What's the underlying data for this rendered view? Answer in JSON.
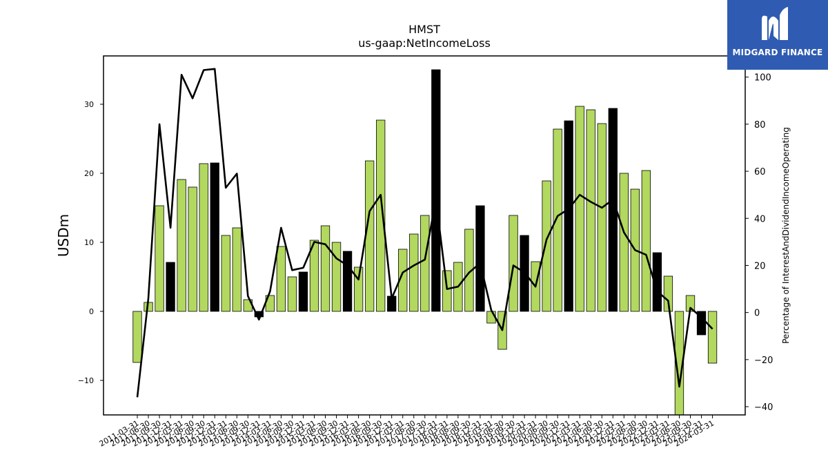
{
  "chart_data": {
    "type": "bar",
    "title": "HMST",
    "subtitle": "us-gaap:NetIncomeLoss",
    "ylabel": "USDm",
    "y2label": "Percentage of InterestAndDividendIncomeOperating",
    "ylim": [
      -15,
      37
    ],
    "y2lim": [
      -43.5,
      109
    ],
    "yticks": [
      -10,
      0,
      10,
      20,
      30
    ],
    "y2ticks": [
      -40,
      -20,
      0,
      20,
      40,
      60,
      80,
      100
    ],
    "tick_labels": [
      "2011-03-31",
      "2011-06-30",
      "2011-09-30",
      "2011-12-31",
      "2012-03-31",
      "2012-06-30",
      "2012-09-30",
      "2012-12-31",
      "2013-03-31",
      "2013-06-30",
      "2013-09-30",
      "2013-12-31",
      "2014-03-31",
      "2014-06-30",
      "2014-09-30",
      "2014-12-31",
      "2015-03-31",
      "2015-06-30",
      "2015-09-30",
      "2015-12-31",
      "2016-03-31",
      "2016-06-30",
      "2016-09-30",
      "2016-12-31",
      "2017-03-31",
      "2017-06-30",
      "2017-09-30",
      "2017-12-31",
      "2018-03-31",
      "2018-06-30",
      "2018-09-30",
      "2018-12-31",
      "2019-03-31",
      "2019-06-30",
      "2019-09-30",
      "2019-12-31",
      "2020-03-31",
      "2020-06-30",
      "2020-09-30",
      "2020-12-31",
      "2021-03-31",
      "2021-06-30",
      "2021-09-30",
      "2021-12-31",
      "2022-03-31",
      "2022-06-30",
      "2022-09-30",
      "2022-12-31",
      "2023-03-31",
      "2023-06-30",
      "2023-09-30",
      "2023-12-31",
      "2024-03-31"
    ],
    "values": [
      -7.4,
      1.3,
      15.3,
      7.1,
      19.1,
      18.0,
      21.4,
      21.5,
      11.0,
      12.1,
      1.7,
      -0.8,
      2.3,
      9.4,
      5.0,
      5.7,
      10.3,
      12.4,
      10.0,
      8.7,
      6.4,
      21.8,
      27.7,
      2.2,
      9.0,
      11.2,
      13.9,
      35.0,
      5.9,
      7.1,
      11.9,
      15.3,
      -1.7,
      -5.5,
      13.9,
      11.0,
      7.2,
      18.9,
      26.4,
      27.6,
      29.7,
      29.2,
      27.2,
      29.4,
      20.0,
      17.7,
      20.4,
      8.5,
      5.1,
      -15.0,
      2.3,
      -3.4,
      -7.5
    ],
    "highlighted_quarter_end": "12-31",
    "line_series": {
      "values": [
        -36,
        6,
        80,
        36,
        101,
        91,
        103,
        103.5,
        53,
        59,
        7,
        -3,
        9,
        36,
        18,
        19,
        30,
        29,
        23,
        20,
        14,
        43,
        50,
        6,
        17,
        20,
        22.5,
        48,
        10,
        11,
        17,
        21,
        1,
        -7.5,
        20,
        17,
        11,
        31,
        41,
        44,
        50,
        47,
        44.5,
        48,
        34,
        26.5,
        24.5,
        9,
        5,
        -31.5,
        2,
        -2,
        -7
      ]
    },
    "colors": {
      "bar": "#b2d85f",
      "highlight_bar": "#000000",
      "line": "#000000",
      "logo_bg": "#2f5cb2"
    }
  },
  "logo": {
    "text": "MIDGARD FINANCE",
    "icon": "midgard-m-logo-icon"
  }
}
